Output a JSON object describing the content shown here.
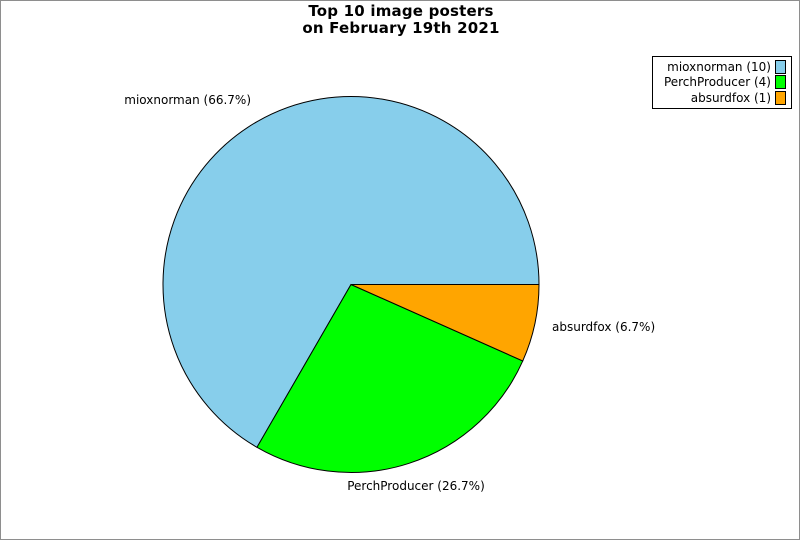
{
  "title": {
    "line1": "Top 10 image posters",
    "line2": "on February 19th 2021"
  },
  "chart_data": {
    "type": "pie",
    "title": "Top 10 image posters on February 19th 2021",
    "categories": [
      "mioxnorman",
      "PerchProducer",
      "absurdfox"
    ],
    "values": [
      10,
      4,
      1
    ],
    "percentages": [
      66.7,
      26.7,
      6.7
    ],
    "colors": [
      "#87ceeb",
      "#00ff00",
      "#ffa500"
    ],
    "stroke_color": "#000000",
    "start_angle_deg": 0,
    "direction": "counterclockwise",
    "legend_position": "top-right"
  },
  "pie": {
    "labels": [
      "mioxnorman (66.7%)",
      "PerchProducer (26.7%)",
      "absurdfox (6.7%)"
    ]
  },
  "legend": {
    "items": [
      {
        "label": "mioxnorman (10)"
      },
      {
        "label": "PerchProducer (4)"
      },
      {
        "label": "absurdfox (1)"
      }
    ]
  }
}
